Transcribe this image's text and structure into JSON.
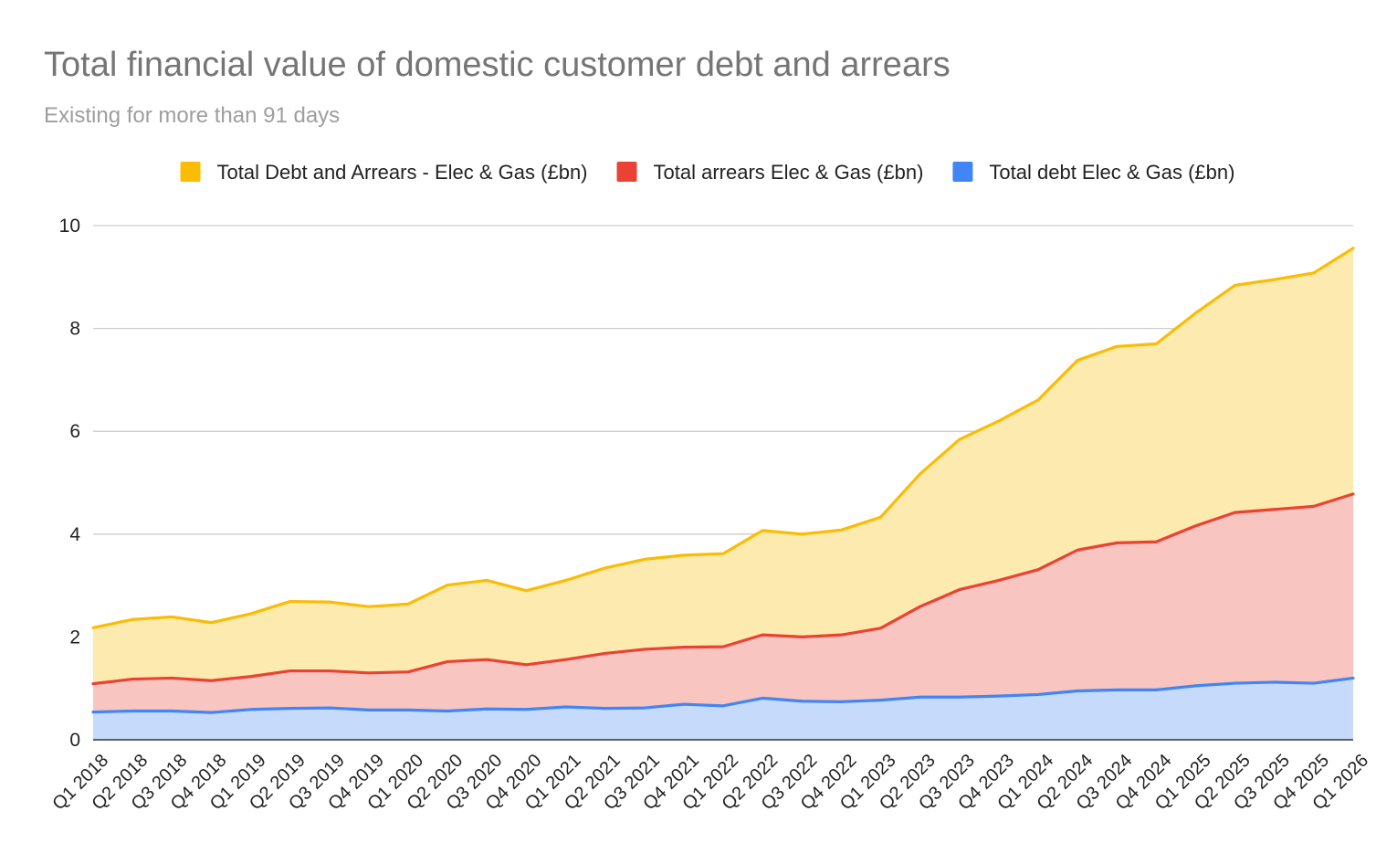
{
  "chart_data": {
    "type": "area",
    "title": "Total financial value of domestic customer debt and arrears",
    "subtitle": "Existing for more than 91 days",
    "xlabel": "",
    "ylabel": "",
    "ylim": [
      0,
      10
    ],
    "yticks": [
      0,
      2,
      4,
      6,
      8,
      10
    ],
    "grid": true,
    "legend_position": "top",
    "categories": [
      "Q1 2018",
      "Q2 2018",
      "Q3 2018",
      "Q4 2018",
      "Q1 2019",
      "Q2 2019",
      "Q3 2019",
      "Q4 2019",
      "Q1 2020",
      "Q2 2020",
      "Q3 2020",
      "Q4 2020",
      "Q1 2021",
      "Q2 2021",
      "Q3 2021",
      "Q4 2021",
      "Q1 2022",
      "Q2 2022",
      "Q3 2022",
      "Q4 2022",
      "Q1 2023",
      "Q2 2023",
      "Q3 2023",
      "Q4 2023",
      "Q1 2024",
      "Q2 2024",
      "Q3 2024",
      "Q4 2024",
      "Q1 2025",
      "Q2 2025",
      "Q3 2025",
      "Q4 2025",
      "Q1 2026"
    ],
    "series": [
      {
        "name": "Total Debt and Arrears - Elec & Gas (£bn)",
        "color": "#fbbc04",
        "fill": "#fdeaae",
        "values": [
          2.18,
          2.34,
          2.39,
          2.28,
          2.45,
          2.69,
          2.68,
          2.59,
          2.64,
          3.01,
          3.1,
          2.9,
          3.1,
          3.34,
          3.51,
          3.59,
          3.62,
          4.07,
          4.0,
          4.08,
          4.33,
          5.17,
          5.84,
          6.2,
          6.61,
          7.38,
          7.65,
          7.7,
          8.3,
          8.84,
          8.95,
          9.08,
          9.56
        ]
      },
      {
        "name": "Total arrears Elec & Gas (£bn)",
        "color": "#ea4335",
        "fill": "#f8c5c1",
        "values": [
          1.09,
          1.18,
          1.2,
          1.15,
          1.23,
          1.34,
          1.34,
          1.3,
          1.32,
          1.52,
          1.56,
          1.46,
          1.56,
          1.68,
          1.76,
          1.8,
          1.81,
          2.04,
          2.0,
          2.04,
          2.17,
          2.59,
          2.92,
          3.1,
          3.31,
          3.69,
          3.83,
          3.85,
          4.16,
          4.42,
          4.48,
          4.54,
          4.78
        ]
      },
      {
        "name": "Total debt Elec & Gas (£bn)",
        "color": "#4285f4",
        "fill": "#c6dafc",
        "values": [
          0.54,
          0.56,
          0.56,
          0.53,
          0.59,
          0.61,
          0.62,
          0.58,
          0.58,
          0.56,
          0.6,
          0.59,
          0.64,
          0.61,
          0.62,
          0.69,
          0.66,
          0.81,
          0.75,
          0.74,
          0.77,
          0.83,
          0.83,
          0.85,
          0.88,
          0.95,
          0.97,
          0.97,
          1.05,
          1.1,
          1.12,
          1.1,
          1.2
        ]
      }
    ]
  }
}
